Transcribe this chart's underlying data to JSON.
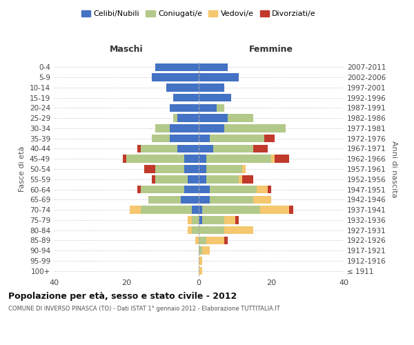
{
  "age_groups": [
    "100+",
    "95-99",
    "90-94",
    "85-89",
    "80-84",
    "75-79",
    "70-74",
    "65-69",
    "60-64",
    "55-59",
    "50-54",
    "45-49",
    "40-44",
    "35-39",
    "30-34",
    "25-29",
    "20-24",
    "15-19",
    "10-14",
    "5-9",
    "0-4"
  ],
  "birth_years": [
    "≤ 1911",
    "1912-1916",
    "1917-1921",
    "1922-1926",
    "1927-1931",
    "1932-1936",
    "1937-1941",
    "1942-1946",
    "1947-1951",
    "1952-1956",
    "1957-1961",
    "1962-1966",
    "1967-1971",
    "1972-1976",
    "1977-1981",
    "1982-1986",
    "1987-1991",
    "1992-1996",
    "1997-2001",
    "2002-2006",
    "2007-2011"
  ],
  "colors": {
    "celibi": "#4472c4",
    "coniugati": "#b3c98a",
    "vedovi": "#f5c76e",
    "divorziati": "#c0392b"
  },
  "maschi": {
    "celibi": [
      0,
      0,
      0,
      0,
      0,
      0,
      2,
      5,
      4,
      3,
      4,
      4,
      6,
      8,
      8,
      6,
      8,
      7,
      9,
      13,
      12
    ],
    "coniugati": [
      0,
      0,
      0,
      0,
      2,
      2,
      14,
      9,
      12,
      9,
      8,
      16,
      10,
      5,
      4,
      1,
      0,
      0,
      0,
      0,
      0
    ],
    "vedovi": [
      0,
      0,
      0,
      1,
      1,
      1,
      3,
      0,
      0,
      0,
      0,
      0,
      0,
      0,
      0,
      0,
      0,
      0,
      0,
      0,
      0
    ],
    "divorziati": [
      0,
      0,
      0,
      0,
      0,
      0,
      0,
      0,
      1,
      1,
      3,
      1,
      1,
      0,
      0,
      0,
      0,
      0,
      0,
      0,
      0
    ]
  },
  "femmine": {
    "celibi": [
      0,
      0,
      0,
      0,
      0,
      1,
      1,
      3,
      3,
      2,
      2,
      2,
      4,
      3,
      7,
      8,
      5,
      9,
      7,
      11,
      8
    ],
    "coniugati": [
      0,
      0,
      1,
      2,
      7,
      6,
      16,
      12,
      13,
      9,
      10,
      18,
      11,
      15,
      17,
      7,
      2,
      0,
      0,
      0,
      0
    ],
    "vedovi": [
      1,
      1,
      2,
      5,
      8,
      3,
      8,
      5,
      3,
      1,
      1,
      1,
      0,
      0,
      0,
      0,
      0,
      0,
      0,
      0,
      0
    ],
    "divorziati": [
      0,
      0,
      0,
      1,
      0,
      1,
      1,
      0,
      1,
      3,
      0,
      4,
      4,
      3,
      0,
      0,
      0,
      0,
      0,
      0,
      0
    ]
  },
  "xlim": 40,
  "title": "Popolazione per età, sesso e stato civile - 2012",
  "subtitle": "COMUNE DI INVERSO PINASCA (TO) - Dati ISTAT 1° gennaio 2012 - Elaborazione TUTTITALIA.IT",
  "ylabel_left": "Fasce di età",
  "ylabel_right": "Anni di nascita",
  "xlabel_left": "Maschi",
  "xlabel_right": "Femmine",
  "legend_labels": [
    "Celibi/Nubili",
    "Coniugati/e",
    "Vedovi/e",
    "Divorziati/e"
  ],
  "background_color": "#ffffff",
  "grid_color": "#cccccc",
  "bar_height": 0.78
}
